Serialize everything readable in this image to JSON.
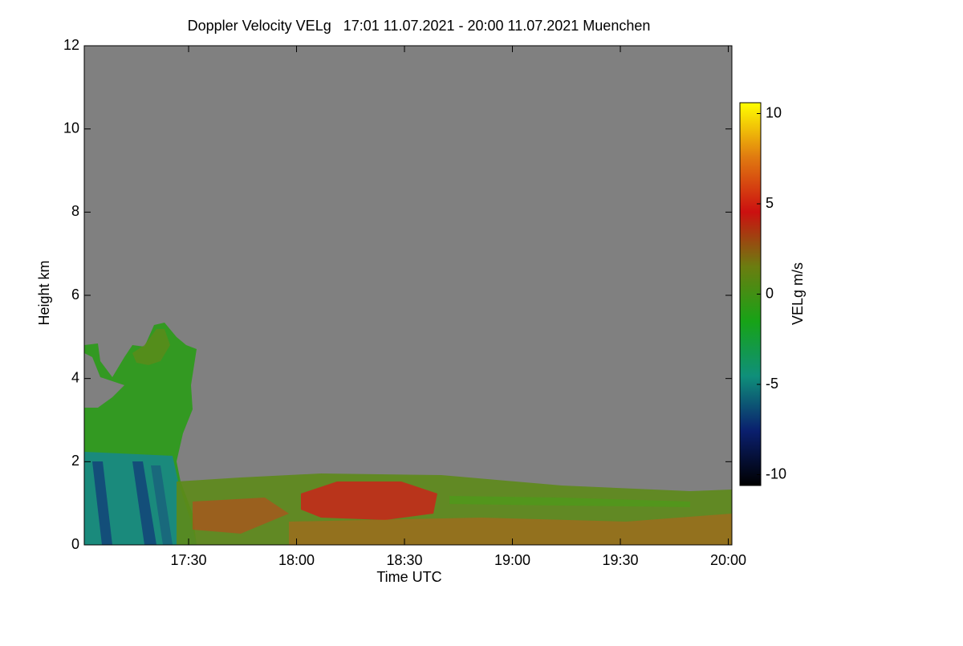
{
  "chart_data": {
    "type": "heatmap",
    "title": "Doppler Velocity VELg   17:01 11.07.2021 - 20:00 11.07.2021 Muenchen",
    "x_label": "Time UTC",
    "y_label": "Height km",
    "colorbar_label": "VELg m/s",
    "xlim": [
      1021,
      1201
    ],
    "xticks": [
      {
        "value": 1050,
        "label": "17:30"
      },
      {
        "value": 1080,
        "label": "18:00"
      },
      {
        "value": 1110,
        "label": "18:30"
      },
      {
        "value": 1140,
        "label": "19:00"
      },
      {
        "value": 1170,
        "label": "19:30"
      },
      {
        "value": 1200,
        "label": "20:00"
      }
    ],
    "ylim": [
      0,
      12
    ],
    "yticks": [
      0,
      2,
      4,
      6,
      8,
      10,
      12
    ],
    "zlim": [
      -10.6,
      10.6
    ],
    "zticks": [
      -10,
      -5,
      0,
      5,
      10
    ],
    "colormap": [
      "#000000",
      "#0a1f6e",
      "#0f8f7a",
      "#17a317",
      "#6b7d10",
      "#cc1010",
      "#e07a10",
      "#ffff00"
    ],
    "background": "#808080"
  }
}
